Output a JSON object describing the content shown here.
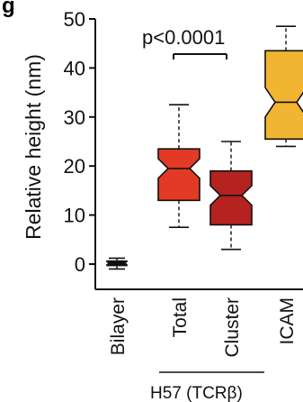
{
  "chart_data": {
    "type": "box",
    "panel_label": "g",
    "ylabel": "Relative height (nm)",
    "ylim": [
      -5,
      50
    ],
    "yticks": [
      0,
      10,
      20,
      30,
      40,
      50
    ],
    "categories": [
      "Bilayer",
      "Total",
      "Cluster",
      "ICAM"
    ],
    "group_label": "H57 (TCRβ)",
    "annotation": "p<0.0001",
    "boxes": [
      {
        "category": "Bilayer",
        "whisker_low": -1,
        "q1": -0.3,
        "median": 0.2,
        "q3": 0.6,
        "whisker_high": 1.2,
        "notch_low": -0.1,
        "notch_high": 0.5,
        "color": "#111111"
      },
      {
        "category": "Total",
        "whisker_low": 7.5,
        "q1": 13,
        "median": 19.5,
        "q3": 23.5,
        "whisker_high": 32.5,
        "notch_low": 17.5,
        "notch_high": 21.5,
        "color": "#e23a24"
      },
      {
        "category": "Cluster",
        "whisker_low": 3,
        "q1": 8,
        "median": 14,
        "q3": 19,
        "whisker_high": 25,
        "notch_low": 12,
        "notch_high": 16,
        "color": "#b5221f"
      },
      {
        "category": "ICAM",
        "whisker_low": 24,
        "q1": 25.5,
        "median": 33,
        "q3": 43.5,
        "whisker_high": 48.5,
        "notch_low": 30,
        "notch_high": 36,
        "color": "#f2b532"
      }
    ],
    "grid": false
  }
}
